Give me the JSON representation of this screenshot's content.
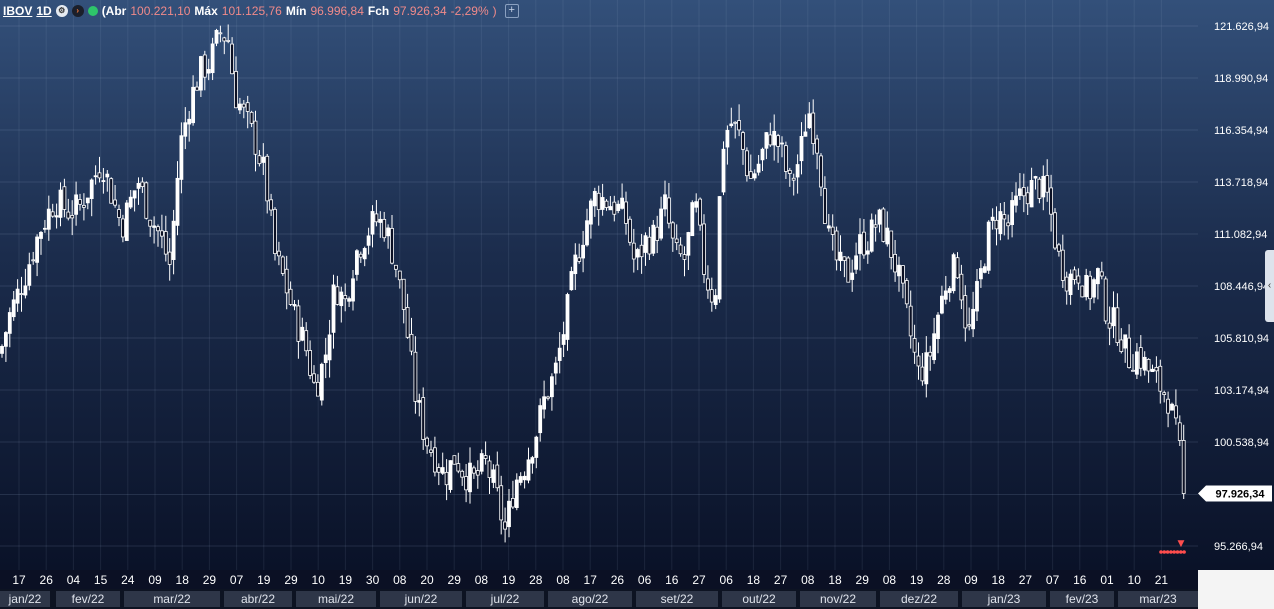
{
  "header": {
    "symbol": "IBOV",
    "interval": "1D",
    "open_label": "(Abr",
    "open_value": "100.221,10",
    "high_label": "Máx",
    "high_value": "101.125,76",
    "low_label": "Mín",
    "low_value": "96.996,84",
    "close_label": "Fch",
    "close_value": "97.926,34",
    "change_value": "-2,29%",
    "close_paren": ")",
    "add_label": "+"
  },
  "colors": {
    "up": "#ffffff",
    "down": "#ffffff",
    "last_price_bg": "#ffffff",
    "header_values": "#f08a8a",
    "marker": "#ff4d4d"
  },
  "last_price_label": "97.926,34",
  "chart_data": {
    "type": "candlestick",
    "ylim": [
      94300,
      122600
    ],
    "y_ticks": [
      121626.94,
      118990.94,
      116354.94,
      113718.94,
      111082.94,
      108446.94,
      105810.94,
      103174.94,
      100538.94,
      95266.94
    ],
    "y_tick_labels": [
      "121.626,94",
      "118.990,94",
      "116.354,94",
      "113.718,94",
      "111.082,94",
      "108.446,94",
      "105.810,94",
      "103.174,94",
      "100.538,94",
      "95.266,94"
    ],
    "x_tick_labels": [
      "17",
      "26",
      "04",
      "15",
      "24",
      "09",
      "18",
      "29",
      "07",
      "19",
      "29",
      "10",
      "19",
      "30",
      "08",
      "20",
      "29",
      "08",
      "19",
      "28",
      "08",
      "17",
      "26",
      "06",
      "16",
      "27",
      "06",
      "18",
      "27",
      "08",
      "18",
      "29",
      "08",
      "19",
      "28",
      "09",
      "18",
      "27",
      "07",
      "16",
      "01",
      "10",
      "21"
    ],
    "months": [
      "jan/22",
      "fev/22",
      "mar/22",
      "abr/22",
      "mai/22",
      "jun/22",
      "jul/22",
      "ago/22",
      "set/22",
      "out/22",
      "nov/22",
      "dez/22",
      "jan/23",
      "fev/23",
      "mar/23"
    ],
    "close_path": [
      [
        0,
        105000
      ],
      [
        10,
        107000
      ],
      [
        25,
        109000
      ],
      [
        40,
        111300
      ],
      [
        55,
        112800
      ],
      [
        70,
        112200
      ],
      [
        80,
        112500
      ],
      [
        90,
        113500
      ],
      [
        102,
        114800
      ],
      [
        115,
        112500
      ],
      [
        122,
        111500
      ],
      [
        138,
        113800
      ],
      [
        150,
        112000
      ],
      [
        160,
        111000
      ],
      [
        170,
        109500
      ],
      [
        180,
        115500
      ],
      [
        190,
        117800
      ],
      [
        200,
        119300
      ],
      [
        210,
        119800
      ],
      [
        220,
        121300
      ],
      [
        228,
        121000
      ],
      [
        235,
        118200
      ],
      [
        245,
        117000
      ],
      [
        255,
        115800
      ],
      [
        265,
        114000
      ],
      [
        275,
        110000
      ],
      [
        285,
        108600
      ],
      [
        295,
        106800
      ],
      [
        305,
        105500
      ],
      [
        315,
        103200
      ],
      [
        325,
        104800
      ],
      [
        335,
        108500
      ],
      [
        345,
        107600
      ],
      [
        355,
        110000
      ],
      [
        365,
        111000
      ],
      [
        375,
        111800
      ],
      [
        385,
        111500
      ],
      [
        395,
        109700
      ],
      [
        405,
        107000
      ],
      [
        415,
        103000
      ],
      [
        425,
        100800
      ],
      [
        435,
        99800
      ],
      [
        445,
        98800
      ],
      [
        455,
        99800
      ],
      [
        465,
        98900
      ],
      [
        475,
        98600
      ],
      [
        485,
        99500
      ],
      [
        495,
        98200
      ],
      [
        505,
        96000
      ],
      [
        515,
        98500
      ],
      [
        525,
        99400
      ],
      [
        535,
        100800
      ],
      [
        545,
        102800
      ],
      [
        555,
        104000
      ],
      [
        565,
        106500
      ],
      [
        575,
        109500
      ],
      [
        585,
        111500
      ],
      [
        595,
        113000
      ],
      [
        605,
        112800
      ],
      [
        615,
        112500
      ],
      [
        625,
        112000
      ],
      [
        635,
        109500
      ],
      [
        645,
        110700
      ],
      [
        655,
        111000
      ],
      [
        665,
        112500
      ],
      [
        675,
        110000
      ],
      [
        685,
        109800
      ],
      [
        695,
        112700
      ],
      [
        705,
        109000
      ],
      [
        715,
        107600
      ],
      [
        722,
        115500
      ],
      [
        730,
        116800
      ],
      [
        740,
        116000
      ],
      [
        750,
        113800
      ],
      [
        760,
        114800
      ],
      [
        770,
        116200
      ],
      [
        780,
        115500
      ],
      [
        790,
        113500
      ],
      [
        800,
        115000
      ],
      [
        808,
        117500
      ],
      [
        818,
        115500
      ],
      [
        828,
        111000
      ],
      [
        838,
        109500
      ],
      [
        848,
        109000
      ],
      [
        858,
        110500
      ],
      [
        868,
        110800
      ],
      [
        878,
        111800
      ],
      [
        888,
        110800
      ],
      [
        898,
        109000
      ],
      [
        908,
        106600
      ],
      [
        918,
        104000
      ],
      [
        928,
        104500
      ],
      [
        938,
        107000
      ],
      [
        948,
        109000
      ],
      [
        958,
        109500
      ],
      [
        968,
        105800
      ],
      [
        978,
        108200
      ],
      [
        988,
        111000
      ],
      [
        998,
        112100
      ],
      [
        1008,
        111500
      ],
      [
        1018,
        112800
      ],
      [
        1028,
        113300
      ],
      [
        1038,
        113600
      ],
      [
        1048,
        112900
      ],
      [
        1058,
        110000
      ],
      [
        1068,
        108800
      ],
      [
        1078,
        109200
      ],
      [
        1088,
        108000
      ],
      [
        1098,
        109000
      ],
      [
        1108,
        106900
      ],
      [
        1118,
        106300
      ],
      [
        1128,
        104800
      ],
      [
        1138,
        105000
      ],
      [
        1148,
        104200
      ],
      [
        1158,
        103500
      ],
      [
        1168,
        102800
      ],
      [
        1178,
        100500
      ],
      [
        1186,
        97926
      ]
    ],
    "marker_label": "▼",
    "side_tab": "‹"
  },
  "labels": {
    "side_tab": "‹"
  }
}
